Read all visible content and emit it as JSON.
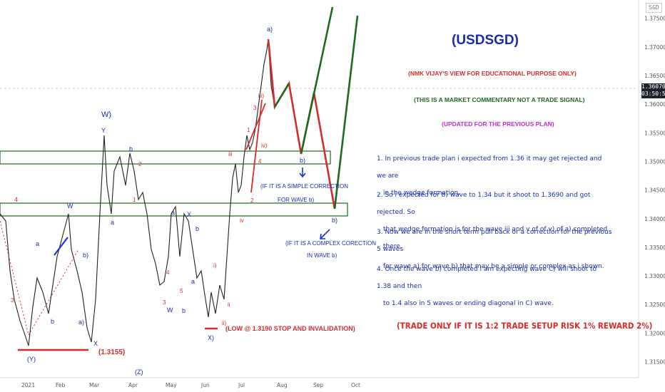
{
  "panel": {
    "title": "(USDSGD)",
    "note1": "(NMK VIJAY'S VIEW FOR EDUCATIONAL PURPOSE ONLY)",
    "note2": "(THIS IS A MARKET COMMENTARY NOT A TRADE SIGNAL)",
    "note3": "(UPDATED FOR THE PREVIOUS PLAN)",
    "p1a": "1. In previous trade plan i expected from 1.36 it may get rejected and we are",
    "p1b": "in the wedge formation.",
    "p2a": "2. So i expected for b) wave to 1.34 but it shoot to 1.3690 and got rejected. So",
    "p2b": "that wedge formation is for the wave iii and v of of v) of a) completed there.",
    "p3a": "3. Now we are in the short term pull back or a correction for the previous 5 waves",
    "p3b": "for wave a) for wave b) that may be a simple or complex as i shown.",
    "p4a": "4. Once the wave b) completed i am expecting wave C) will shoot to 1.38 and then",
    "p4b": "to 1.4 also in 5 waves or ending diagonal in C) wave.",
    "bottom": "(TRADE ONLY IF IT IS 1:2 TRADE SETUP RISK 1% REWARD 2%)"
  },
  "badges": {
    "sgd": "SGD",
    "price": "1.36070",
    "time": "03:50:57"
  },
  "chart_annotations": {
    "simple": "(IF IT IS A SIMPLE CORRECTION",
    "simple2": "FOR WAVE b)",
    "complex": "(IF IT IS A COMPLEX CORECTION",
    "complex2": "IN WAVE b)",
    "low": "(LOW @ 1.3190 STOP AND INVALIDATION)",
    "low2": "(1.3155)"
  },
  "colors": {
    "blue": "#1a2bb0",
    "red": "#d42c2c",
    "green": "#1c6b1c",
    "magenta": "#c42ad6",
    "darkred": "#b01c1c"
  },
  "chart_data": {
    "type": "line",
    "symbol": "USDSGD",
    "yaxis": {
      "ticks": [
        1.315,
        1.32,
        1.325,
        1.33,
        1.335,
        1.34,
        1.345,
        1.35,
        1.355,
        1.36,
        1.365,
        1.37,
        1.375
      ],
      "ylim": [
        1.3122,
        1.3782
      ]
    },
    "xaxis": {
      "ticks": [
        "2021",
        "Feb",
        "Mar",
        "Apr",
        "May",
        "Jun",
        "Jul",
        "Aug",
        "Sep",
        "Oct"
      ]
    },
    "last_price": 1.3607,
    "zones": [
      [
        1.3487,
        1.3507
      ],
      [
        1.3392,
        1.3412
      ]
    ],
    "projection_red": [
      [
        1.3437,
        "Jul-mid"
      ],
      [
        1.3607,
        "Jul-end"
      ]
    ],
    "wave_labels": [
      "W)",
      "Y",
      "X",
      "W",
      "Y)",
      "a)",
      "b)",
      "i)",
      "ii)",
      "iii)",
      "iv)",
      "v)",
      "X)",
      "(Z)",
      "(Y)",
      "b",
      "a",
      "c"
    ]
  }
}
